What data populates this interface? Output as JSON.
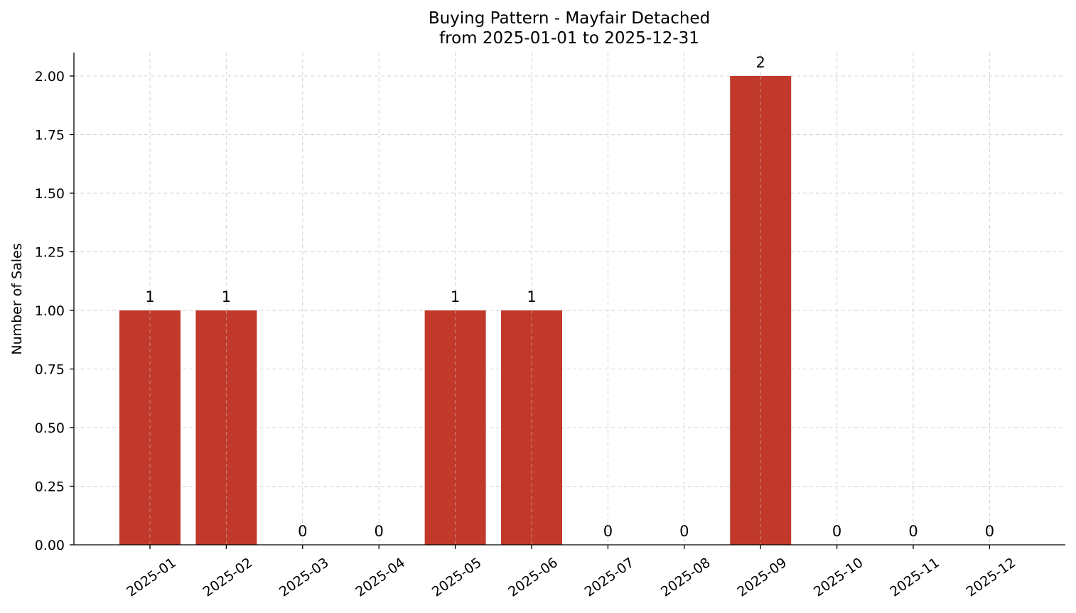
{
  "chart_data": {
    "type": "bar",
    "title": "Buying Pattern - Mayfair Detached",
    "subtitle": "from 2025-01-01 to 2025-12-31",
    "xlabel": "",
    "ylabel": "Number of Sales",
    "categories": [
      "2025-01",
      "2025-02",
      "2025-03",
      "2025-04",
      "2025-05",
      "2025-06",
      "2025-07",
      "2025-08",
      "2025-09",
      "2025-10",
      "2025-11",
      "2025-12"
    ],
    "values": [
      1,
      1,
      0,
      0,
      1,
      1,
      0,
      0,
      2,
      0,
      0,
      0
    ],
    "data_labels": [
      "1",
      "1",
      "0",
      "0",
      "1",
      "1",
      "0",
      "0",
      "2",
      "0",
      "0",
      "0"
    ],
    "ylim": [
      0,
      2.1
    ],
    "yticks": [
      0,
      0.25,
      0.5,
      0.75,
      1.0,
      1.25,
      1.5,
      1.75,
      2.0
    ],
    "ytick_labels": [
      "0.00",
      "0.25",
      "0.50",
      "0.75",
      "1.00",
      "1.25",
      "1.50",
      "1.75",
      "2.00"
    ],
    "grid": true,
    "bar_color": "#c0392b"
  }
}
